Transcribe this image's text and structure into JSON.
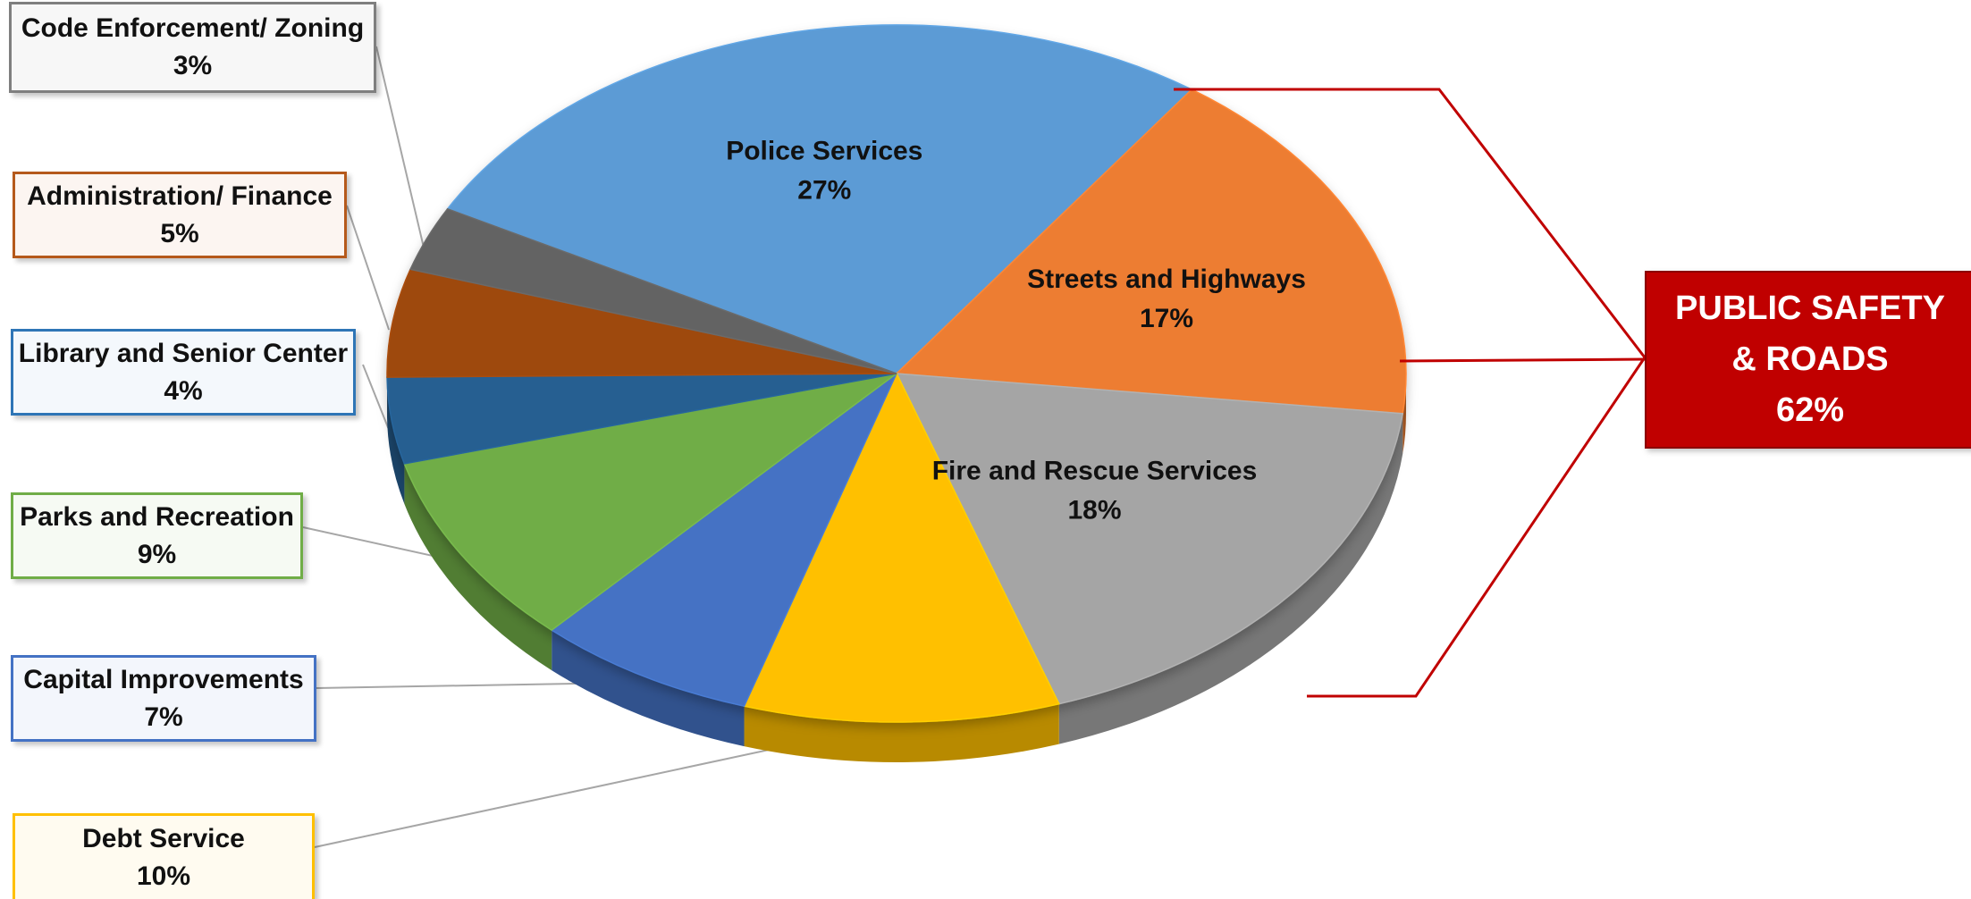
{
  "chart_data": {
    "type": "pie",
    "slices": [
      {
        "label": "Police Services",
        "value": 27,
        "value_label": "27%",
        "color": "#5b9bd5"
      },
      {
        "label": "Streets and Highways",
        "value": 17,
        "value_label": "17%",
        "color": "#ed7d31"
      },
      {
        "label": "Fire and Rescue Services",
        "value": 18,
        "value_label": "18%",
        "color": "#a5a5a5"
      },
      {
        "label": "Debt Service",
        "value": 10,
        "value_label": "10%",
        "color": "#ffc000"
      },
      {
        "label": "Capital Improvements",
        "value": 7,
        "value_label": "7%",
        "color": "#4472c4"
      },
      {
        "label": "Parks and Recreation",
        "value": 9,
        "value_label": "9%",
        "color": "#70ad47"
      },
      {
        "label": "Library and Senior Center",
        "value": 4,
        "value_label": "4%",
        "color": "#255e91"
      },
      {
        "label": "Administration/ Finance",
        "value": 5,
        "value_label": "5%",
        "color": "#9e480e"
      },
      {
        "label": "Code Enforcement/ Zoning",
        "value": 3,
        "value_label": "3%",
        "color": "#636363"
      }
    ],
    "group_callout": {
      "line1": "PUBLIC SAFETY",
      "line2": "& ROADS",
      "value_label": "62%",
      "members": [
        "Police Services",
        "Streets and Highways",
        "Fire and Rescue Services"
      ],
      "color": "#c00000"
    }
  }
}
